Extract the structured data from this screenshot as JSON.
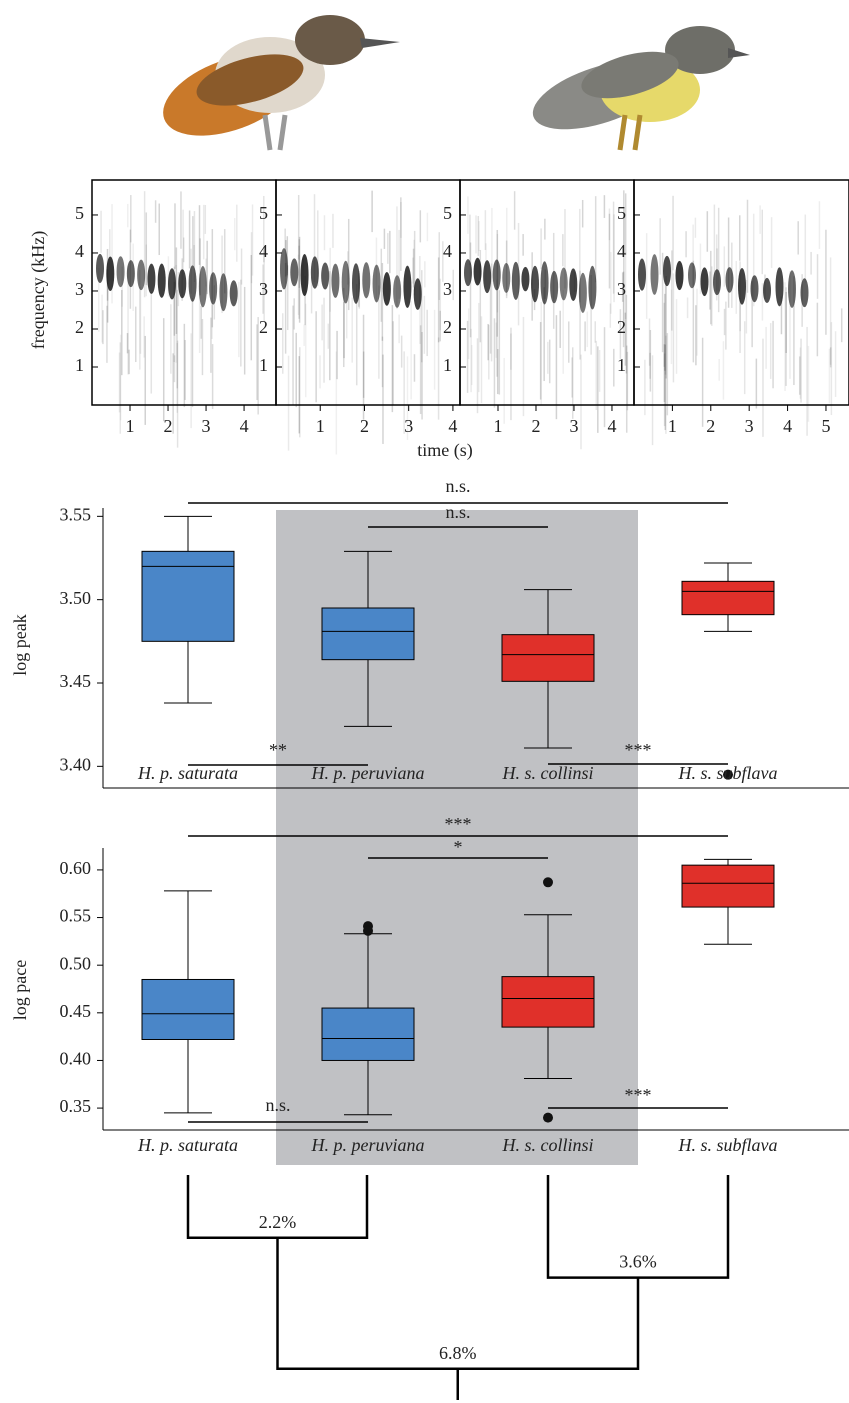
{
  "chart_data": [
    {
      "type": "spectrogram",
      "y_label": "frequency (kHz)",
      "x_label": "time (s)",
      "panels": [
        {
          "xlim": [
            0,
            4.84
          ],
          "xticks": [
            1,
            2,
            3,
            4
          ],
          "ylim": [
            0,
            5.92
          ],
          "yticks": [
            1,
            2,
            3,
            4,
            5
          ]
        },
        {
          "xlim": [
            0,
            4.16
          ],
          "xticks": [
            1,
            2,
            3,
            4
          ],
          "ylim": [
            0,
            5.92
          ],
          "yticks": [
            1,
            2,
            3,
            4,
            5
          ]
        },
        {
          "xlim": [
            0,
            4.58
          ],
          "xticks": [
            1,
            2,
            3,
            4
          ],
          "ylim": [
            0,
            5.92
          ],
          "yticks": [
            1,
            2,
            3,
            4,
            5
          ]
        },
        {
          "xlim": [
            0,
            5.6
          ],
          "xticks": [
            1,
            2,
            3,
            4,
            5
          ],
          "ylim": [
            0,
            5.92
          ],
          "yticks": [
            1,
            2,
            3,
            4,
            5
          ]
        }
      ]
    },
    {
      "type": "box",
      "y_label": "log peak",
      "categories": [
        "H. p. saturata",
        "H. p. peruviana",
        "H. s. collinsi",
        "H. s. subflava"
      ],
      "colors": [
        "#4a86c8",
        "#4a86c8",
        "#e0302a",
        "#e0302a"
      ],
      "ylim": [
        3.387,
        3.555
      ],
      "yticks": [
        {
          "value": 3.4,
          "label": "3.40"
        },
        3.45,
        {
          "value": 3.5,
          "label": "3.50"
        },
        3.55
      ],
      "boxes": [
        {
          "min": 3.438,
          "q1": 3.475,
          "median": 3.52,
          "q3": 3.529,
          "max": 3.55,
          "outliers": []
        },
        {
          "min": 3.424,
          "q1": 3.464,
          "median": 3.481,
          "q3": 3.495,
          "max": 3.529,
          "outliers": []
        },
        {
          "min": 3.411,
          "q1": 3.451,
          "median": 3.467,
          "q3": 3.479,
          "max": 3.506,
          "outliers": []
        },
        {
          "min": 3.481,
          "q1": 3.491,
          "median": 3.505,
          "q3": 3.511,
          "max": 3.522,
          "outliers": [
            3.395
          ]
        }
      ],
      "annotations": [
        "n.s.",
        "n.s.",
        "**",
        "***"
      ]
    },
    {
      "type": "box",
      "y_label": "log pace",
      "categories": [
        "H. p. saturata",
        "H. p. peruviana",
        "H. s. collinsi",
        "H. s. subflava"
      ],
      "colors": [
        "#4a86c8",
        "#4a86c8",
        "#e0302a",
        "#e0302a"
      ],
      "ylim": [
        0.327,
        0.623
      ],
      "yticks": [
        0.35,
        {
          "value": 0.4,
          "label": "0.40"
        },
        0.45,
        {
          "value": 0.5,
          "label": "0.50"
        },
        0.55,
        {
          "value": 0.6,
          "label": "0.60"
        }
      ],
      "boxes": [
        {
          "min": 0.345,
          "q1": 0.422,
          "median": 0.449,
          "q3": 0.485,
          "max": 0.578,
          "outliers": []
        },
        {
          "min": 0.343,
          "q1": 0.4,
          "median": 0.423,
          "q3": 0.455,
          "max": 0.533,
          "outliers": [
            0.541,
            0.536
          ]
        },
        {
          "min": 0.381,
          "q1": 0.435,
          "median": 0.465,
          "q3": 0.488,
          "max": 0.553,
          "outliers": [
            0.587,
            0.34
          ]
        },
        {
          "min": 0.522,
          "q1": 0.561,
          "median": 0.586,
          "q3": 0.605,
          "max": 0.611,
          "outliers": []
        }
      ],
      "annotations": [
        "***",
        "*",
        "n.s.",
        "***"
      ]
    },
    {
      "type": "tree",
      "values": [
        2.2,
        3.6,
        6.8
      ],
      "value_labels": [
        "2.2%",
        "3.6%",
        "6.8%"
      ]
    }
  ]
}
